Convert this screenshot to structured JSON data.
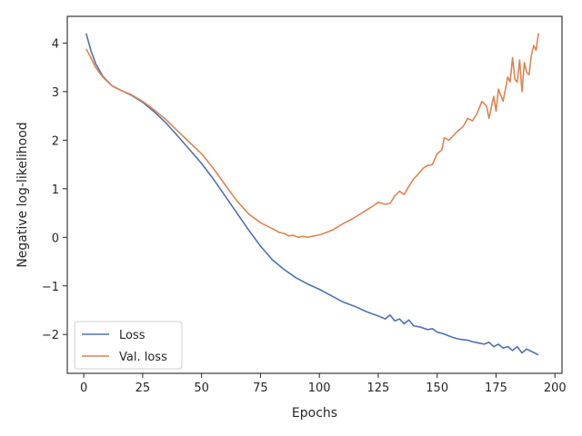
{
  "chart_data": {
    "type": "line",
    "title": "",
    "xlabel": "Epochs",
    "ylabel": "Negative log-likelihood",
    "xlim": [
      -7,
      203
    ],
    "ylim": [
      -2.8,
      4.55
    ],
    "x_ticks": [
      0,
      25,
      50,
      75,
      100,
      125,
      150,
      175,
      200
    ],
    "y_ticks": [
      -2,
      -1,
      0,
      1,
      2,
      3,
      4
    ],
    "x_tick_labels": [
      "0",
      "25",
      "50",
      "75",
      "100",
      "125",
      "150",
      "175",
      "200"
    ],
    "y_tick_labels": [
      "−2",
      "−1",
      "0",
      "1",
      "2",
      "3",
      "4"
    ],
    "grid": false,
    "legend_position": "lower-left",
    "series": [
      {
        "name": "Loss",
        "color": "#4c72b0",
        "points": [
          [
            1,
            4.2
          ],
          [
            3,
            3.85
          ],
          [
            5,
            3.58
          ],
          [
            8,
            3.32
          ],
          [
            12,
            3.12
          ],
          [
            16,
            3.02
          ],
          [
            20,
            2.93
          ],
          [
            25,
            2.78
          ],
          [
            30,
            2.58
          ],
          [
            35,
            2.35
          ],
          [
            40,
            2.08
          ],
          [
            45,
            1.8
          ],
          [
            50,
            1.52
          ],
          [
            55,
            1.2
          ],
          [
            60,
            0.85
          ],
          [
            65,
            0.5
          ],
          [
            70,
            0.15
          ],
          [
            75,
            -0.18
          ],
          [
            80,
            -0.46
          ],
          [
            85,
            -0.66
          ],
          [
            90,
            -0.83
          ],
          [
            95,
            -0.96
          ],
          [
            100,
            -1.07
          ],
          [
            105,
            -1.2
          ],
          [
            110,
            -1.33
          ],
          [
            115,
            -1.42
          ],
          [
            120,
            -1.53
          ],
          [
            125,
            -1.62
          ],
          [
            128,
            -1.68
          ],
          [
            130,
            -1.6
          ],
          [
            132,
            -1.72
          ],
          [
            134,
            -1.68
          ],
          [
            136,
            -1.78
          ],
          [
            138,
            -1.7
          ],
          [
            140,
            -1.82
          ],
          [
            143,
            -1.85
          ],
          [
            146,
            -1.9
          ],
          [
            148,
            -1.88
          ],
          [
            150,
            -1.95
          ],
          [
            153,
            -1.99
          ],
          [
            156,
            -2.05
          ],
          [
            158,
            -2.08
          ],
          [
            160,
            -2.1
          ],
          [
            163,
            -2.12
          ],
          [
            165,
            -2.15
          ],
          [
            168,
            -2.18
          ],
          [
            170,
            -2.2
          ],
          [
            172,
            -2.16
          ],
          [
            174,
            -2.25
          ],
          [
            176,
            -2.2
          ],
          [
            178,
            -2.28
          ],
          [
            180,
            -2.25
          ],
          [
            182,
            -2.33
          ],
          [
            184,
            -2.25
          ],
          [
            186,
            -2.38
          ],
          [
            188,
            -2.3
          ],
          [
            190,
            -2.35
          ],
          [
            193,
            -2.42
          ]
        ]
      },
      {
        "name": "Val. loss",
        "color": "#dd8452",
        "points": [
          [
            1,
            3.88
          ],
          [
            3,
            3.7
          ],
          [
            5,
            3.5
          ],
          [
            8,
            3.3
          ],
          [
            12,
            3.12
          ],
          [
            16,
            3.02
          ],
          [
            20,
            2.94
          ],
          [
            25,
            2.8
          ],
          [
            30,
            2.62
          ],
          [
            35,
            2.42
          ],
          [
            40,
            2.18
          ],
          [
            45,
            1.95
          ],
          [
            50,
            1.72
          ],
          [
            55,
            1.42
          ],
          [
            60,
            1.08
          ],
          [
            65,
            0.75
          ],
          [
            70,
            0.48
          ],
          [
            75,
            0.3
          ],
          [
            80,
            0.18
          ],
          [
            83,
            0.1
          ],
          [
            85,
            0.08
          ],
          [
            87,
            0.03
          ],
          [
            89,
            0.04
          ],
          [
            91,
            0.0
          ],
          [
            93,
            0.02
          ],
          [
            95,
            0.0
          ],
          [
            97,
            0.02
          ],
          [
            100,
            0.05
          ],
          [
            103,
            0.1
          ],
          [
            106,
            0.16
          ],
          [
            110,
            0.28
          ],
          [
            114,
            0.38
          ],
          [
            118,
            0.5
          ],
          [
            122,
            0.62
          ],
          [
            125,
            0.72
          ],
          [
            128,
            0.68
          ],
          [
            130,
            0.7
          ],
          [
            132,
            0.85
          ],
          [
            134,
            0.95
          ],
          [
            136,
            0.88
          ],
          [
            138,
            1.05
          ],
          [
            140,
            1.2
          ],
          [
            142,
            1.3
          ],
          [
            144,
            1.42
          ],
          [
            146,
            1.48
          ],
          [
            148,
            1.5
          ],
          [
            150,
            1.72
          ],
          [
            152,
            1.8
          ],
          [
            153,
            2.05
          ],
          [
            155,
            2.0
          ],
          [
            157,
            2.1
          ],
          [
            159,
            2.2
          ],
          [
            161,
            2.28
          ],
          [
            163,
            2.45
          ],
          [
            165,
            2.4
          ],
          [
            167,
            2.55
          ],
          [
            169,
            2.8
          ],
          [
            171,
            2.7
          ],
          [
            172,
            2.45
          ],
          [
            174,
            2.9
          ],
          [
            175,
            2.6
          ],
          [
            176,
            3.05
          ],
          [
            178,
            2.8
          ],
          [
            180,
            3.3
          ],
          [
            181,
            3.2
          ],
          [
            182,
            3.7
          ],
          [
            183,
            3.25
          ],
          [
            184,
            3.2
          ],
          [
            185,
            3.65
          ],
          [
            186,
            3.0
          ],
          [
            187,
            3.6
          ],
          [
            188,
            3.4
          ],
          [
            189,
            3.35
          ],
          [
            190,
            3.75
          ],
          [
            191,
            3.95
          ],
          [
            192,
            3.85
          ],
          [
            193,
            4.2
          ]
        ]
      }
    ]
  }
}
